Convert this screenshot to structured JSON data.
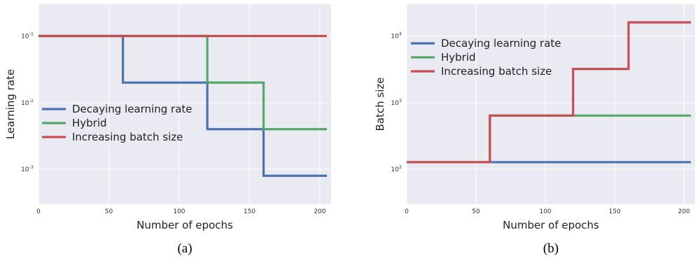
{
  "chart_data": [
    {
      "type": "line",
      "caption": "(a)",
      "xlabel": "Number of epochs",
      "ylabel": "Learning rate",
      "xlim": [
        0,
        208
      ],
      "ylim": [
        0.0003,
        0.3
      ],
      "yscale": "log",
      "grid": true,
      "legend_position": "lower-left",
      "xticks": [
        0,
        50,
        100,
        150,
        200
      ],
      "yticks": [
        {
          "value": 0.1,
          "base": "10",
          "exp": "-1"
        },
        {
          "value": 0.01,
          "base": "10",
          "exp": "-2"
        },
        {
          "value": 0.001,
          "base": "10",
          "exp": "-3"
        }
      ],
      "series": [
        {
          "name": "Decaying learning rate",
          "color": "#4c72b0",
          "points": [
            [
              0,
              0.1
            ],
            [
              60,
              0.1
            ],
            [
              60,
              0.02
            ],
            [
              120,
              0.02
            ],
            [
              120,
              0.004
            ],
            [
              160,
              0.004
            ],
            [
              160,
              0.0008
            ],
            [
              205,
              0.0008
            ]
          ]
        },
        {
          "name": "Hybrid",
          "color": "#55a868",
          "points": [
            [
              0,
              0.1
            ],
            [
              120,
              0.1
            ],
            [
              120,
              0.02
            ],
            [
              160,
              0.02
            ],
            [
              160,
              0.004
            ],
            [
              205,
              0.004
            ]
          ]
        },
        {
          "name": "Increasing batch size",
          "color": "#c44e52",
          "points": [
            [
              0,
              0.1
            ],
            [
              205,
              0.1
            ]
          ]
        }
      ]
    },
    {
      "type": "line",
      "caption": "(b)",
      "xlabel": "Number of epochs",
      "ylabel": "Batch size",
      "xlim": [
        0,
        208
      ],
      "ylim": [
        30,
        30000
      ],
      "yscale": "log",
      "grid": true,
      "legend_position": "upper-left",
      "xticks": [
        0,
        50,
        100,
        150,
        200
      ],
      "yticks": [
        {
          "value": 10000,
          "base": "10",
          "exp": "4"
        },
        {
          "value": 1000,
          "base": "10",
          "exp": "3"
        },
        {
          "value": 100,
          "base": "10",
          "exp": "2"
        }
      ],
      "series": [
        {
          "name": "Decaying learning rate",
          "color": "#4c72b0",
          "points": [
            [
              0,
              128
            ],
            [
              205,
              128
            ]
          ]
        },
        {
          "name": "Hybrid",
          "color": "#55a868",
          "points": [
            [
              0,
              128
            ],
            [
              60,
              128
            ],
            [
              60,
              640
            ],
            [
              205,
              640
            ]
          ]
        },
        {
          "name": "Increasing batch size",
          "color": "#c44e52",
          "points": [
            [
              0,
              128
            ],
            [
              60,
              128
            ],
            [
              60,
              640
            ],
            [
              120,
              640
            ],
            [
              120,
              3200
            ],
            [
              160,
              3200
            ],
            [
              160,
              16000
            ],
            [
              205,
              16000
            ]
          ]
        }
      ]
    }
  ]
}
